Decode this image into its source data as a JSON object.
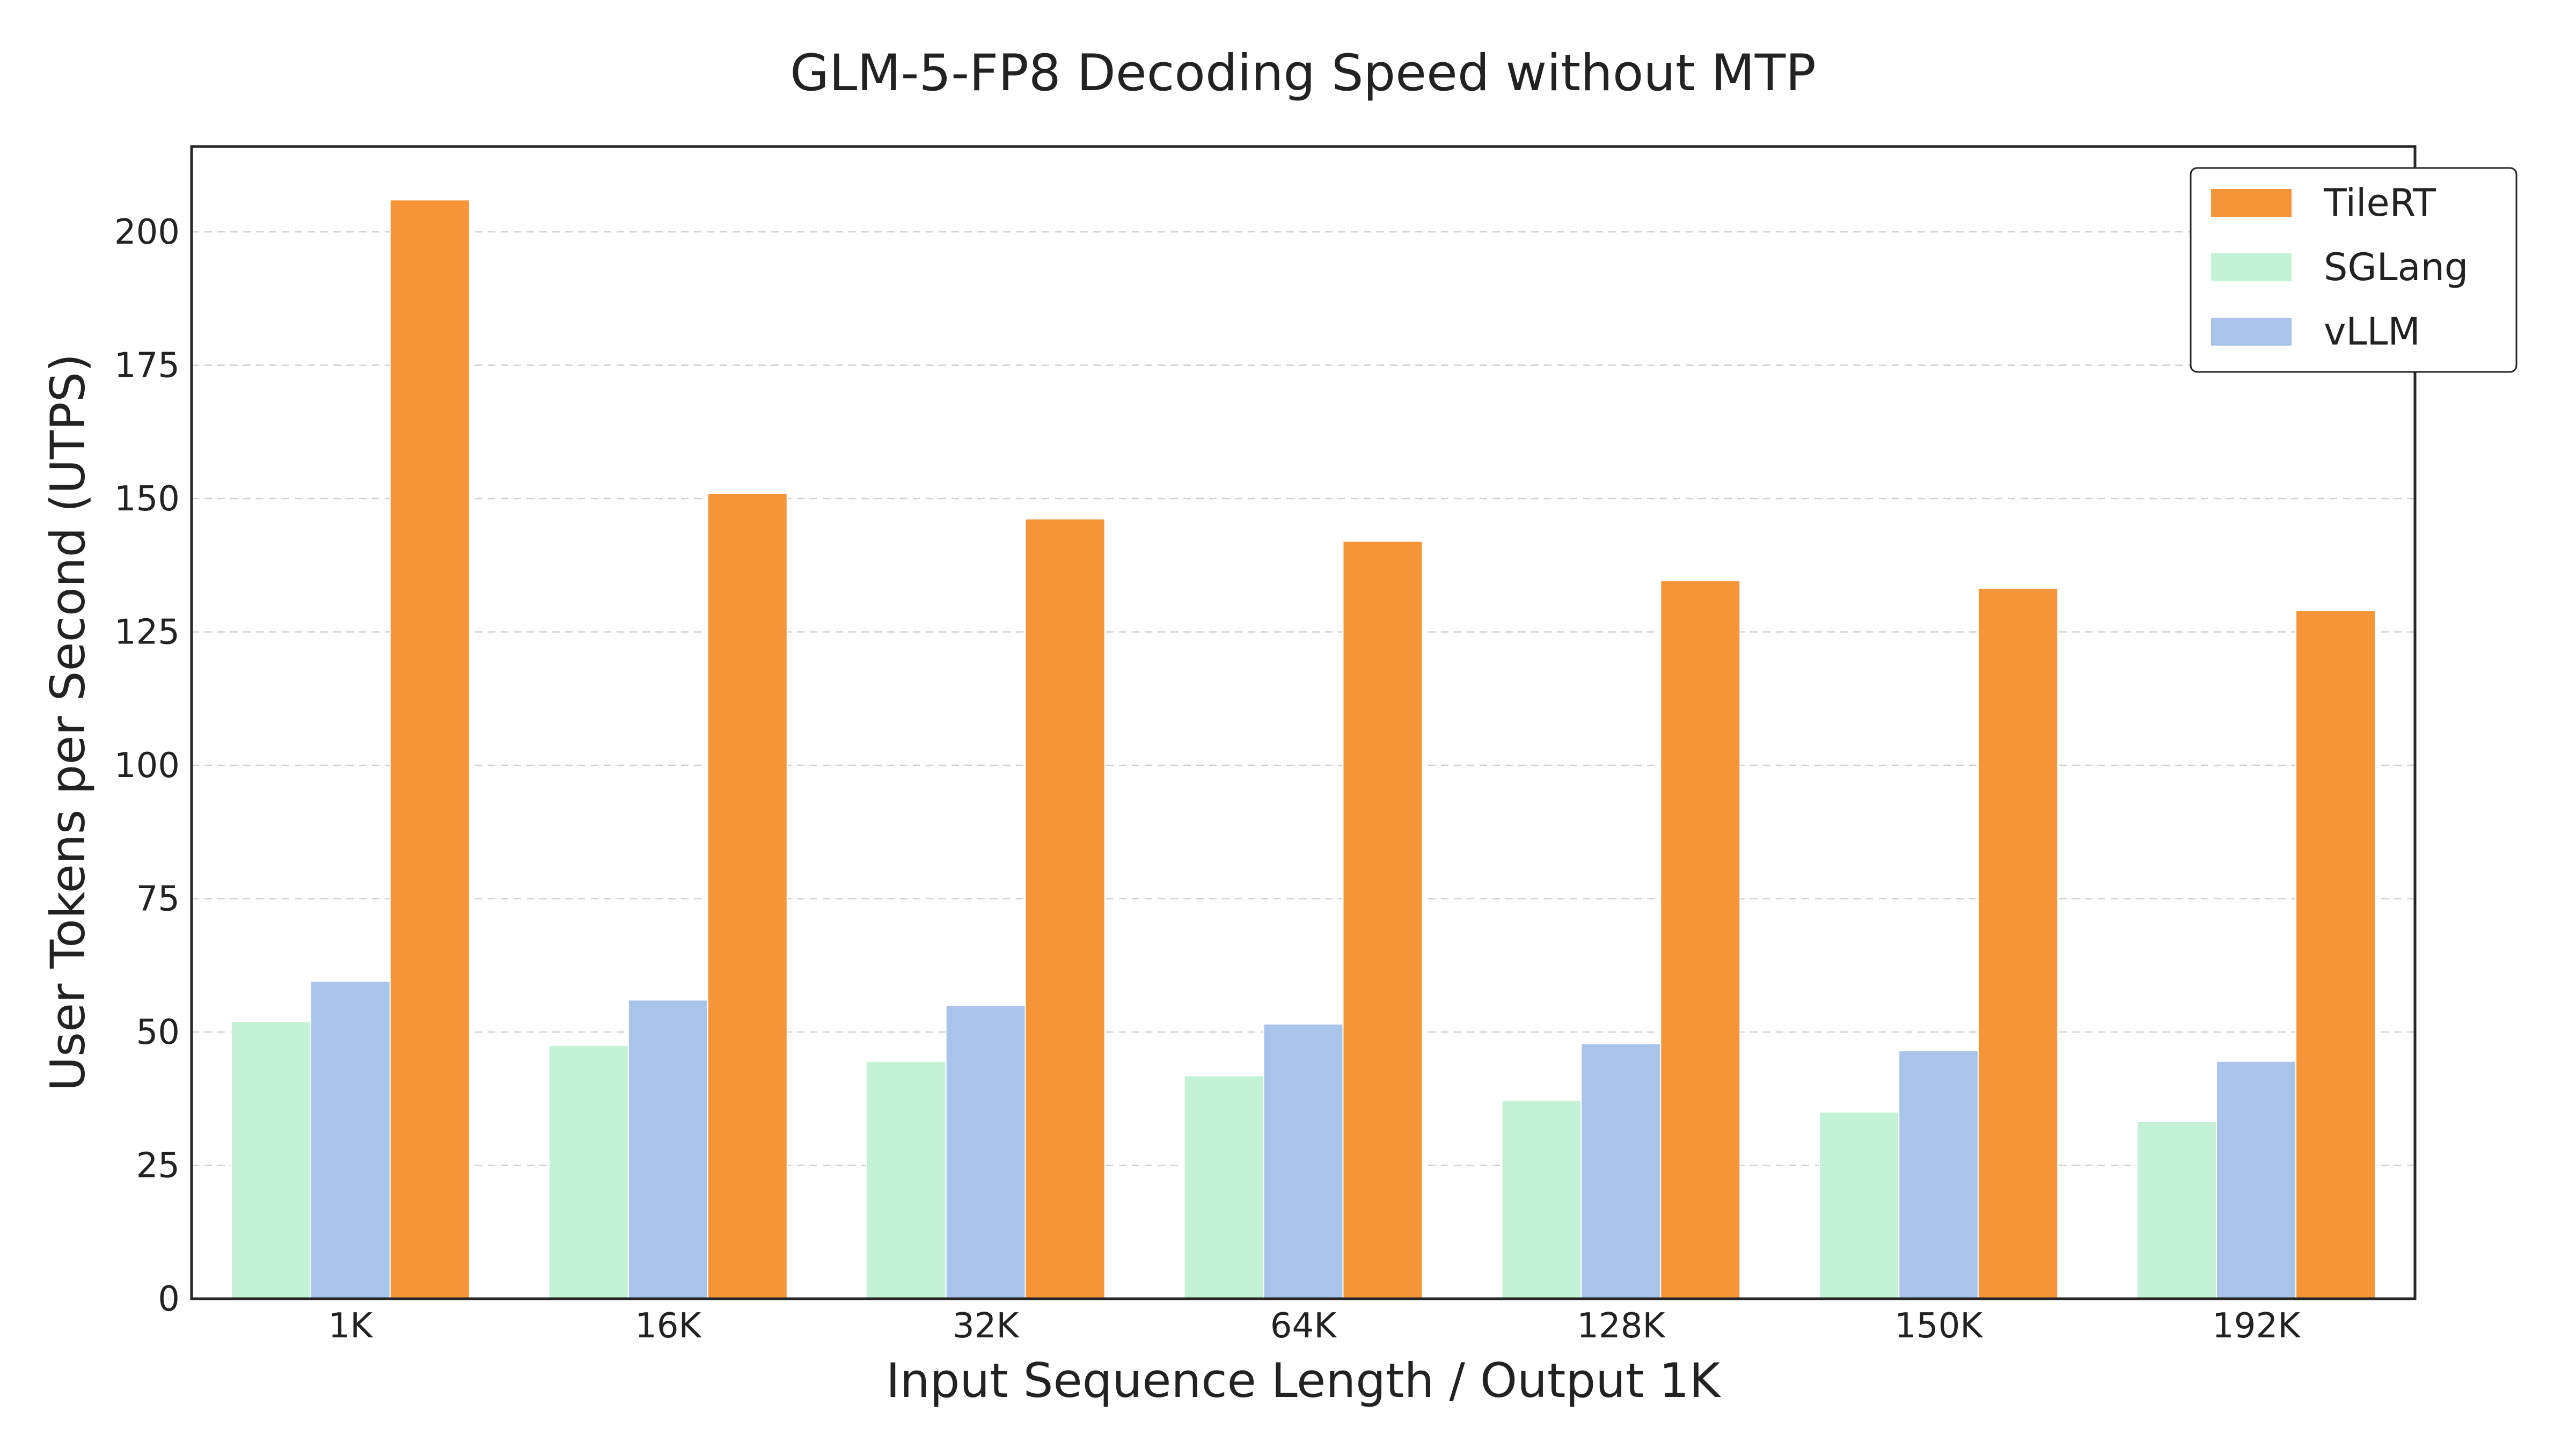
{
  "chart_data": {
    "type": "bar",
    "title": "GLM-5-FP8 Decoding Speed without MTP",
    "xlabel": "Input Sequence Length / Output 1K",
    "ylabel": "User Tokens per Second (UTPS)",
    "categories": [
      "1K",
      "16K",
      "32K",
      "64K",
      "128K",
      "150K",
      "192K"
    ],
    "ylim": [
      0,
      216
    ],
    "yticks": [
      0,
      25,
      50,
      75,
      100,
      125,
      150,
      175,
      200
    ],
    "grid": true,
    "legend_position": "top-right",
    "series": [
      {
        "name": "SGLang",
        "color": "#c3f2d6",
        "values": [
          52,
          47.5,
          44.5,
          41.8,
          37.2,
          35,
          33.2
        ]
      },
      {
        "name": "vLLM",
        "color": "#a8c4ea",
        "values": [
          59.5,
          56,
          55,
          51.5,
          47.8,
          46.5,
          44.5
        ]
      },
      {
        "name": "TileRT",
        "color": "#f69537",
        "values": [
          206,
          151,
          146.2,
          142,
          134.6,
          133.2,
          129
        ]
      }
    ],
    "legend_order": [
      "TileRT",
      "SGLang",
      "vLLM"
    ]
  }
}
